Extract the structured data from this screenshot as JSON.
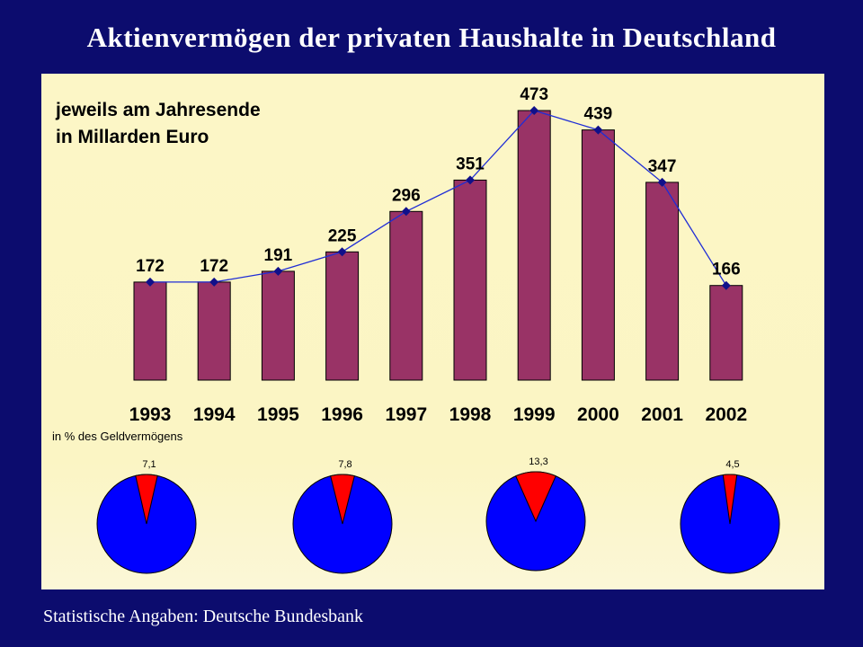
{
  "title": "Aktienvermögen der privaten Haushalte in Deutschland",
  "subtitle_line1": "jeweils am Jahresende",
  "subtitle_line2": "in Millarden Euro",
  "pie_caption": "in % des Geldvermögens",
  "source": "Statistische Angaben: Deutsche Bundesbank",
  "colors": {
    "background": "#0c0c6e",
    "panel": "#fcf6c6",
    "bar": "#993366",
    "line": "#1f2dd6",
    "pie_main": "#0000ff",
    "pie_slice": "#ff0000"
  },
  "chart_data": [
    {
      "type": "bar",
      "categories": [
        "1993",
        "1994",
        "1995",
        "1996",
        "1997",
        "1998",
        "1999",
        "2000",
        "2001",
        "2002"
      ],
      "values": [
        172,
        172,
        191,
        225,
        296,
        351,
        473,
        439,
        347,
        166
      ],
      "data_labels": [
        "172",
        "172",
        "191",
        "225",
        "296",
        "351",
        "473",
        "439",
        "347",
        "166"
      ],
      "overlay_line": true,
      "ylim": [
        0,
        500
      ],
      "grid": false
    },
    {
      "type": "pie",
      "slices": [
        {
          "value": 7.1,
          "label": "7,1"
        },
        {
          "value": 7.8,
          "label": "7,8"
        },
        {
          "value": 13.3,
          "label": "13,3"
        },
        {
          "value": 4.5,
          "label": "4,5"
        }
      ]
    }
  ]
}
